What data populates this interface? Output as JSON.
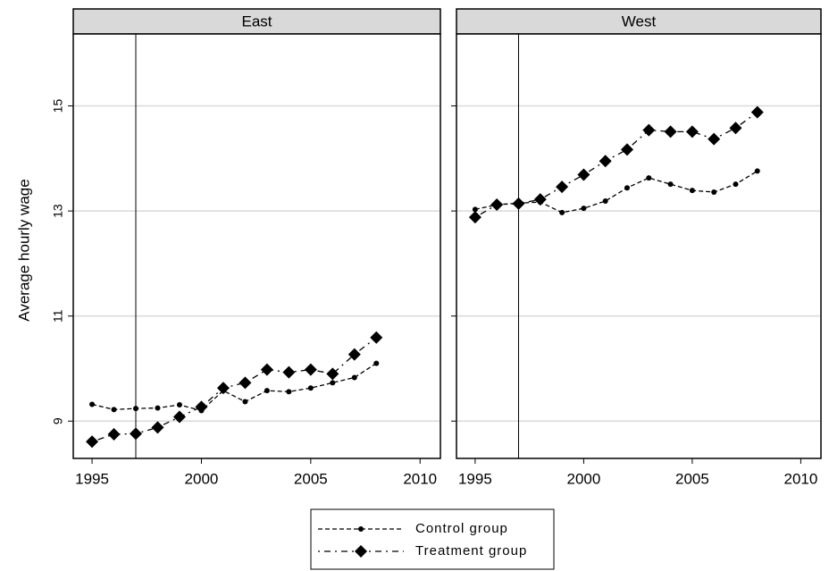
{
  "chart_data": {
    "type": "line",
    "y_label": "Average hourly wage",
    "facets": [
      "East",
      "West"
    ],
    "x": [
      1995,
      1996,
      1997,
      1998,
      1999,
      2000,
      2001,
      2002,
      2003,
      2004,
      2005,
      2006,
      2007,
      2008
    ],
    "xlim": [
      1994.14,
      2010.93
    ],
    "xticks": [
      1995,
      2000,
      2005,
      2010
    ],
    "ylim": [
      8.29,
      16.37
    ],
    "yticks": [
      9,
      11,
      13,
      15
    ],
    "grid": true,
    "vline": 1997,
    "series": [
      {
        "name": "Control group",
        "color": "#000000",
        "marker": "dot",
        "line_style": "dash",
        "values": [
          [
            9.32,
            9.22,
            9.24,
            9.25,
            9.31,
            9.2,
            9.58,
            9.37,
            9.58,
            9.56,
            9.63,
            9.73,
            9.83,
            10.1
          ],
          [
            13.03,
            13.12,
            13.15,
            13.17,
            12.97,
            13.05,
            13.19,
            13.44,
            13.63,
            13.51,
            13.39,
            13.36,
            13.51,
            13.76
          ]
        ]
      },
      {
        "name": "Treatment group",
        "color": "#000000",
        "marker": "diamond",
        "line_style": "dashdot",
        "values": [
          [
            8.61,
            8.75,
            8.76,
            8.88,
            9.08,
            9.27,
            9.63,
            9.73,
            9.98,
            9.93,
            9.98,
            9.9,
            10.27,
            10.59
          ],
          [
            12.88,
            13.12,
            13.14,
            13.22,
            13.46,
            13.69,
            13.95,
            14.17,
            14.54,
            14.51,
            14.51,
            14.37,
            14.58,
            14.88
          ]
        ]
      }
    ]
  }
}
